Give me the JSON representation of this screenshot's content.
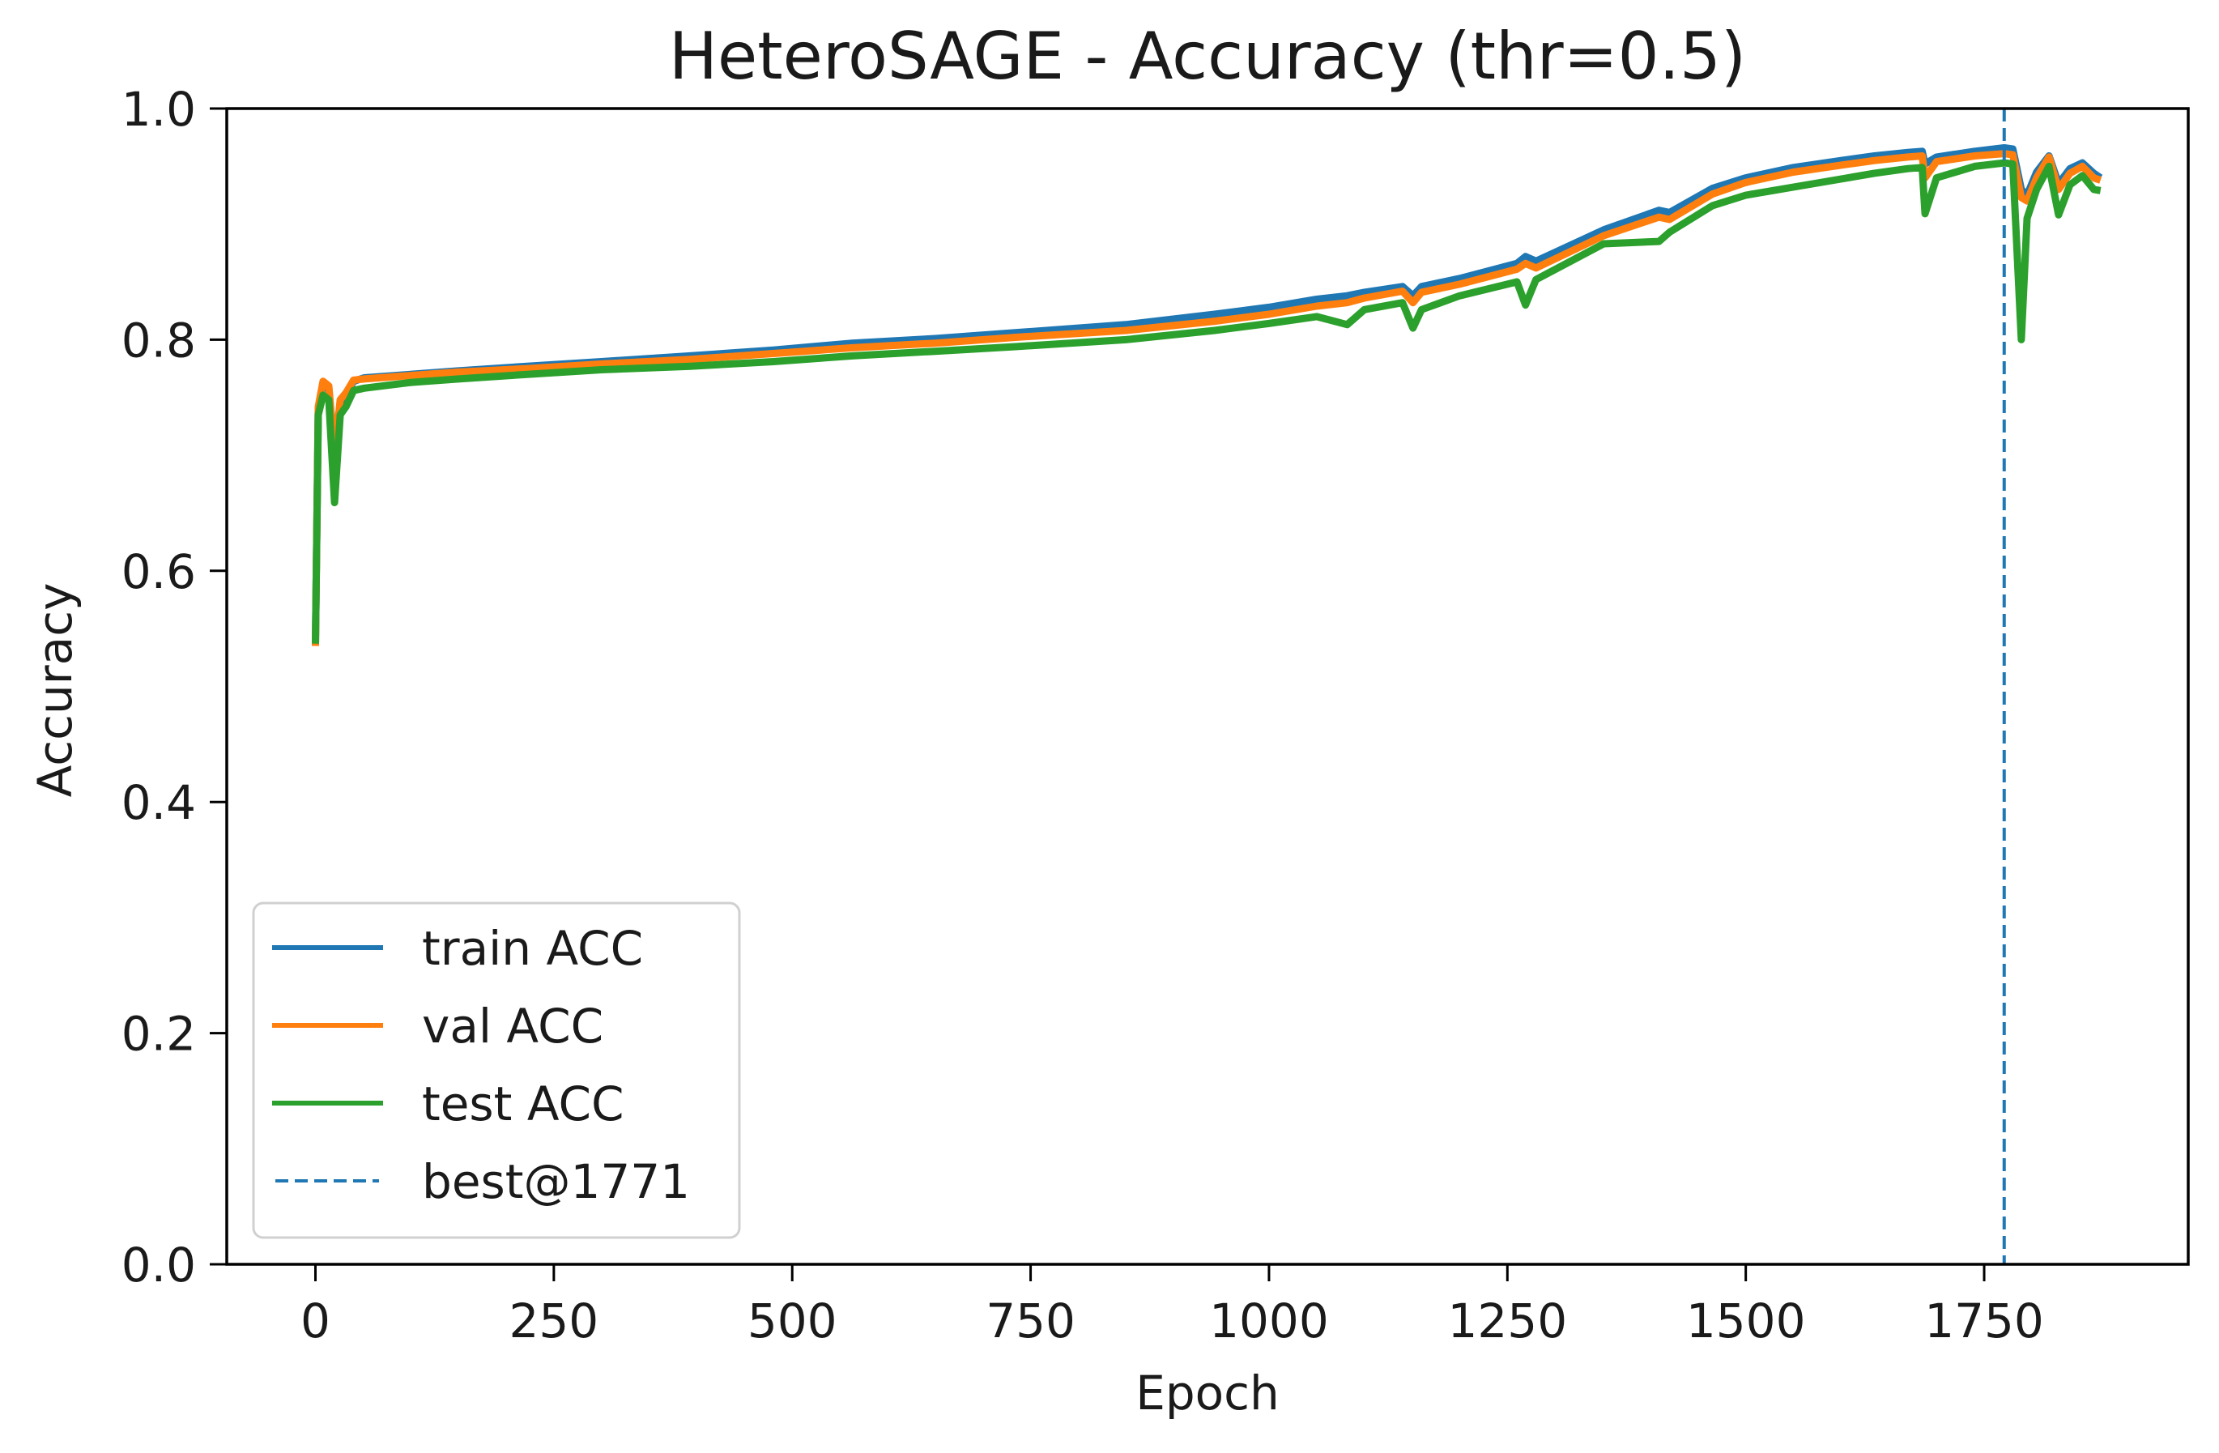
{
  "chart_data": {
    "type": "line",
    "title": "HeteroSAGE - Accuracy (thr=0.5)",
    "xlabel": "Epoch",
    "ylabel": "Accuracy",
    "xlim": [
      -93,
      1964
    ],
    "ylim": [
      0.0,
      1.0
    ],
    "xticks": [
      0,
      250,
      500,
      750,
      1000,
      1250,
      1500,
      1750
    ],
    "xtick_labels": [
      "0",
      "250",
      "500",
      "750",
      "1000",
      "1250",
      "1500",
      "1750"
    ],
    "yticks": [
      0.0,
      0.2,
      0.4,
      0.6,
      0.8,
      1.0
    ],
    "ytick_labels": [
      "0.0",
      "0.2",
      "0.4",
      "0.6",
      "0.8",
      "1.0"
    ],
    "grid": false,
    "legend_position": "lower left",
    "x": [
      0,
      3,
      8,
      14,
      20,
      26,
      32,
      40,
      51,
      100,
      150,
      222,
      300,
      393,
      480,
      563,
      650,
      734,
      850,
      943,
      1000,
      1050,
      1082,
      1100,
      1140,
      1151,
      1160,
      1200,
      1260,
      1269,
      1280,
      1351,
      1409,
      1420,
      1465,
      1500,
      1550,
      1600,
      1635,
      1670,
      1685,
      1688,
      1700,
      1740,
      1771,
      1780,
      1789,
      1795,
      1805,
      1818,
      1828,
      1840,
      1853,
      1865,
      1872
    ],
    "series": [
      {
        "name": "train ACC",
        "color": "#1f77b4",
        "values": [
          0.536,
          0.74,
          0.762,
          0.758,
          0.705,
          0.745,
          0.752,
          0.764,
          0.767,
          0.77,
          0.773,
          0.777,
          0.781,
          0.786,
          0.791,
          0.797,
          0.801,
          0.806,
          0.813,
          0.822,
          0.828,
          0.835,
          0.838,
          0.841,
          0.846,
          0.838,
          0.846,
          0.853,
          0.866,
          0.872,
          0.868,
          0.895,
          0.912,
          0.91,
          0.931,
          0.94,
          0.949,
          0.955,
          0.959,
          0.962,
          0.963,
          0.952,
          0.958,
          0.963,
          0.966,
          0.965,
          0.93,
          0.925,
          0.945,
          0.959,
          0.935,
          0.948,
          0.953,
          0.944,
          0.94
        ]
      },
      {
        "name": "val ACC",
        "color": "#ff7f0e",
        "values": [
          0.535,
          0.742,
          0.764,
          0.76,
          0.7,
          0.748,
          0.754,
          0.765,
          0.766,
          0.769,
          0.772,
          0.775,
          0.779,
          0.783,
          0.788,
          0.793,
          0.797,
          0.802,
          0.808,
          0.816,
          0.822,
          0.829,
          0.832,
          0.836,
          0.842,
          0.832,
          0.841,
          0.848,
          0.861,
          0.866,
          0.862,
          0.89,
          0.906,
          0.904,
          0.926,
          0.936,
          0.945,
          0.951,
          0.955,
          0.958,
          0.959,
          0.94,
          0.954,
          0.959,
          0.961,
          0.96,
          0.923,
          0.92,
          0.94,
          0.958,
          0.93,
          0.944,
          0.95,
          0.94,
          0.938
        ]
      },
      {
        "name": "test ACC",
        "color": "#2ca02c",
        "values": [
          0.537,
          0.735,
          0.752,
          0.748,
          0.659,
          0.735,
          0.742,
          0.756,
          0.758,
          0.763,
          0.766,
          0.77,
          0.774,
          0.777,
          0.781,
          0.786,
          0.79,
          0.794,
          0.8,
          0.808,
          0.814,
          0.82,
          0.813,
          0.826,
          0.832,
          0.81,
          0.826,
          0.838,
          0.85,
          0.83,
          0.852,
          0.883,
          0.885,
          0.893,
          0.916,
          0.925,
          0.932,
          0.939,
          0.944,
          0.948,
          0.949,
          0.909,
          0.94,
          0.95,
          0.953,
          0.952,
          0.8,
          0.905,
          0.93,
          0.95,
          0.908,
          0.934,
          0.942,
          0.93,
          0.929
        ]
      }
    ],
    "annotations": [
      {
        "type": "vline",
        "x": 1771,
        "label": "best@1771",
        "color": "#1f77b4",
        "linestyle": "dashed"
      }
    ]
  },
  "legend": {
    "items": [
      {
        "label": "train ACC",
        "color": "#1f77b4",
        "style": "solid"
      },
      {
        "label": "val ACC",
        "color": "#ff7f0e",
        "style": "solid"
      },
      {
        "label": "test ACC",
        "color": "#2ca02c",
        "style": "solid"
      },
      {
        "label": "best@1771",
        "color": "#1f77b4",
        "style": "dashed"
      }
    ]
  }
}
